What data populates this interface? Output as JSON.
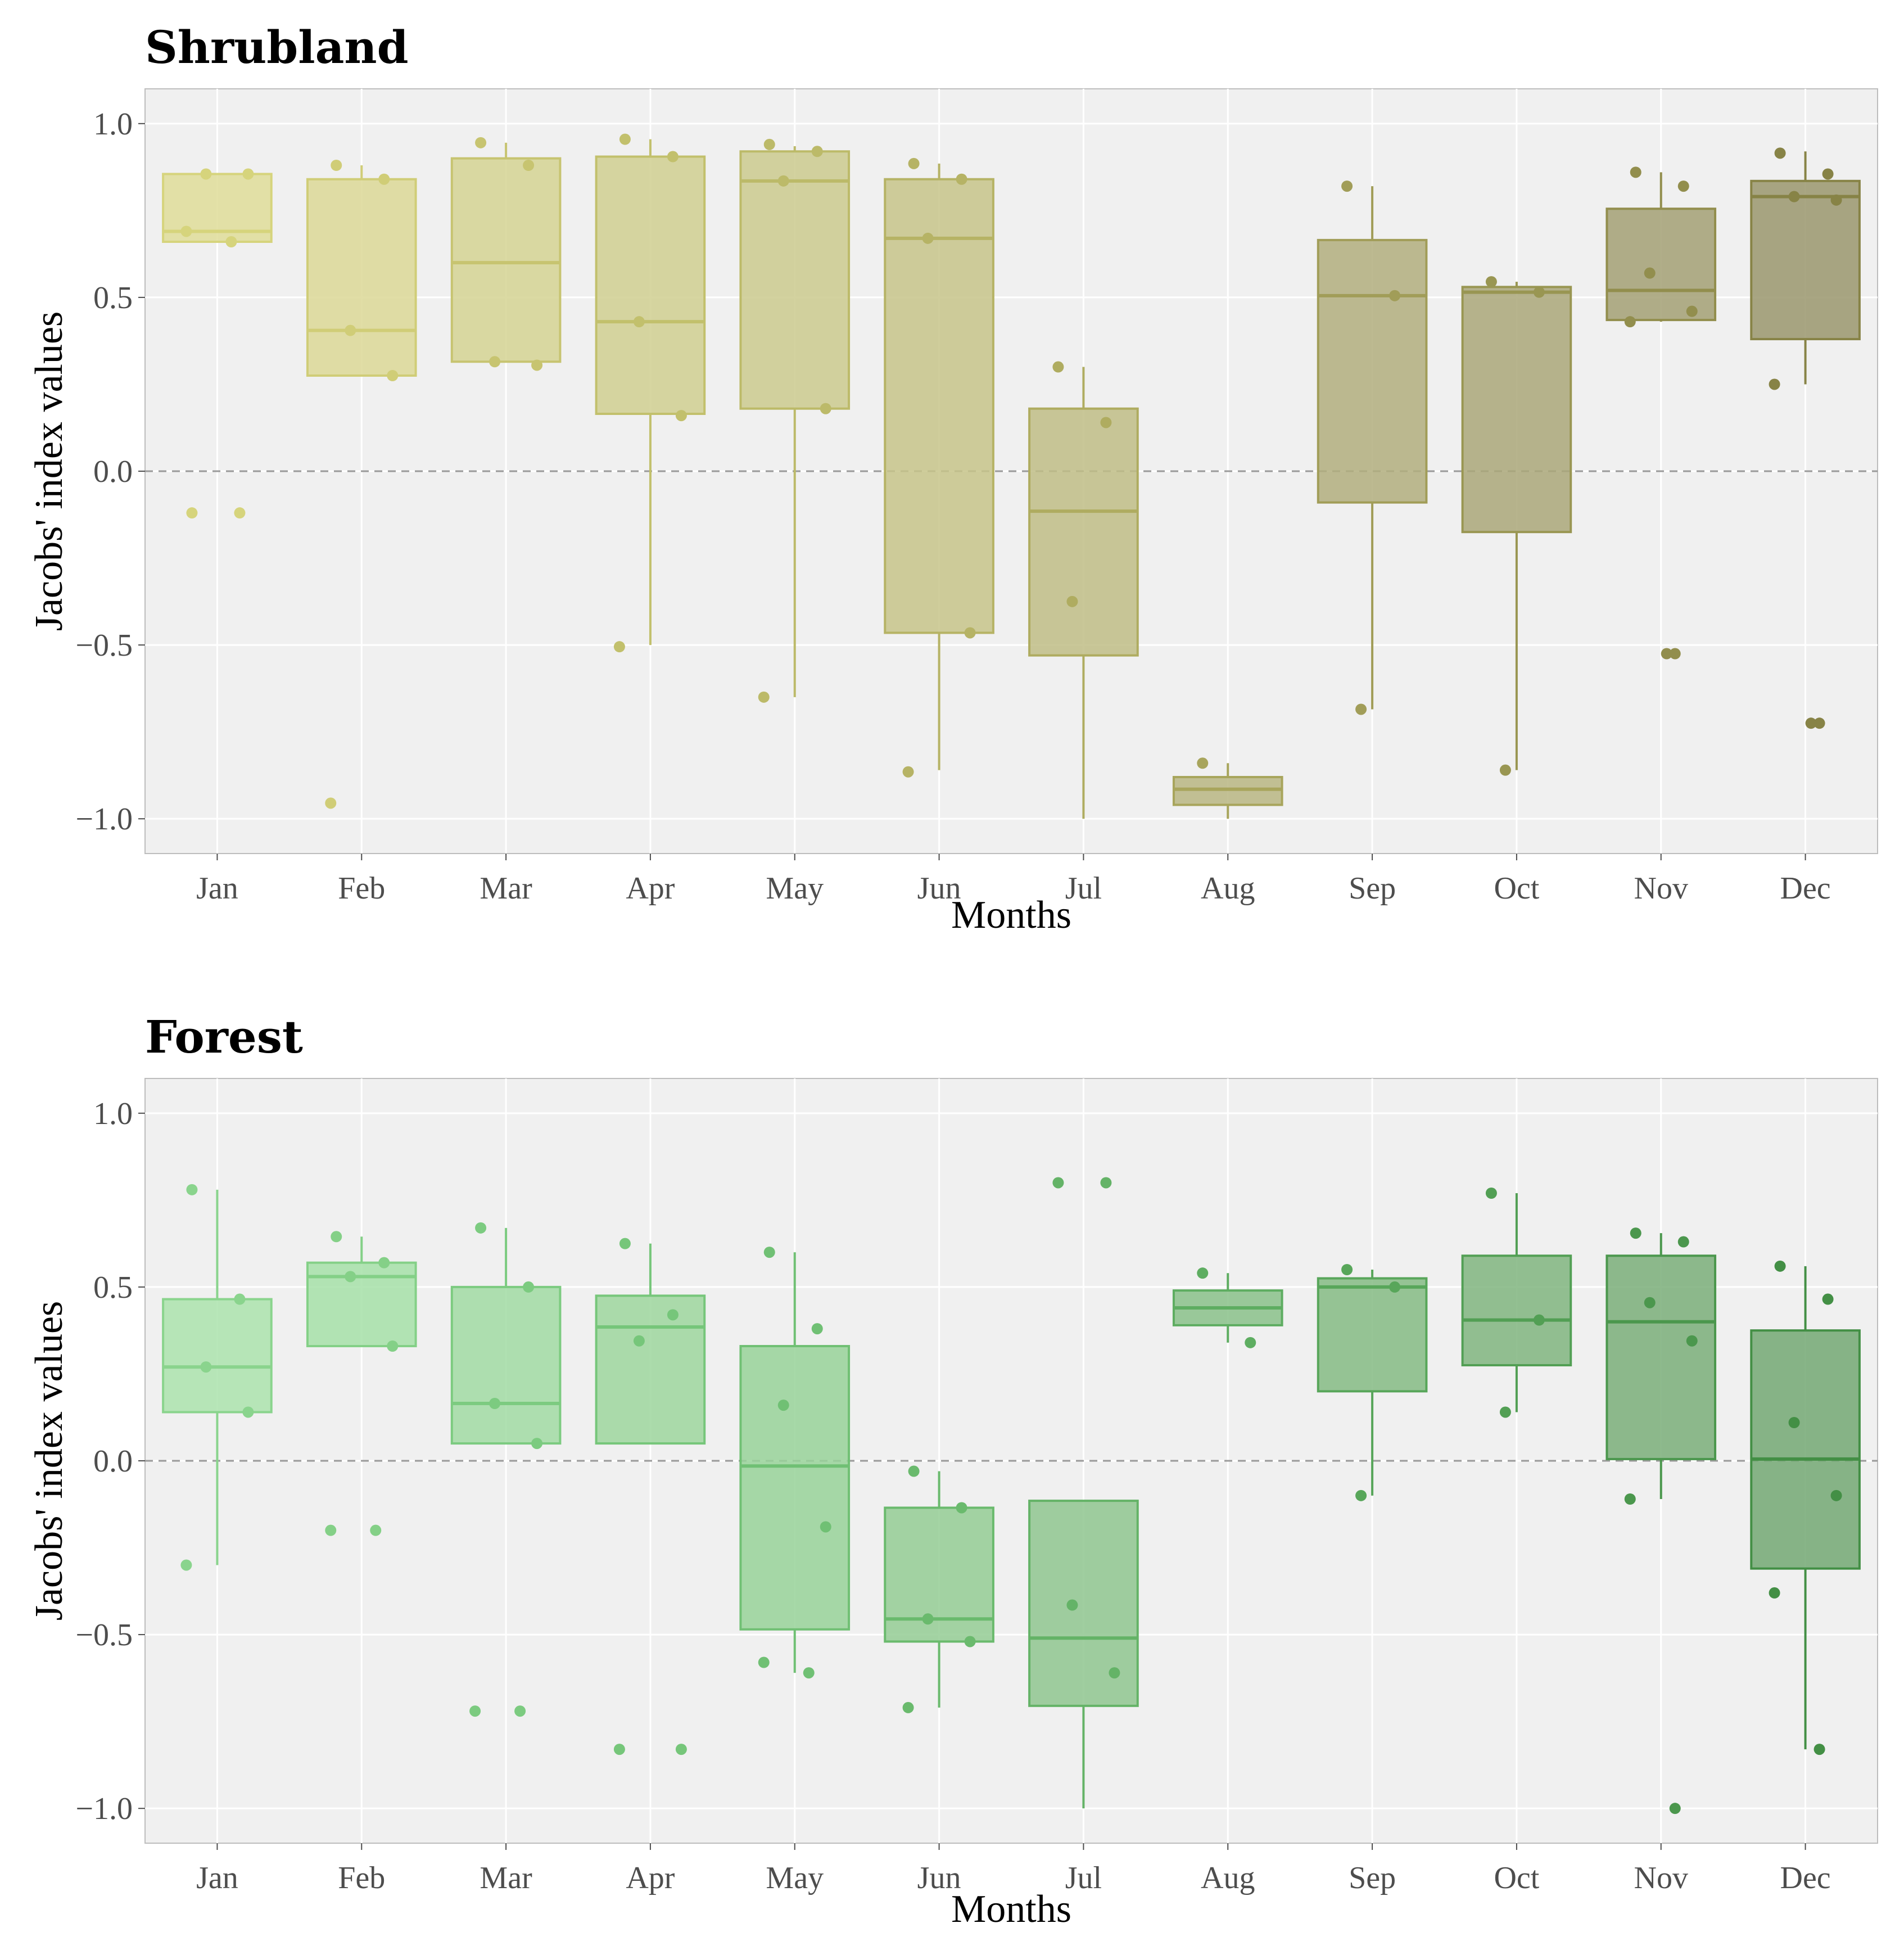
{
  "chart_data": [
    {
      "type": "boxplot",
      "title": "Shrubland",
      "xlabel": "Months",
      "ylabel": "Jacobs' index values",
      "ylim": [
        -1.1,
        1.1
      ],
      "yticks": [
        1.0,
        0.5,
        0.0,
        -0.5,
        -1.0
      ],
      "ytick_labels": [
        "1.0",
        "0.5",
        "0.0",
        "−0.5",
        "−1.0"
      ],
      "reference_line": 0,
      "categories": [
        "Jan",
        "Feb",
        "Mar",
        "Apr",
        "May",
        "Jun",
        "Jul",
        "Aug",
        "Sep",
        "Oct",
        "Nov",
        "Dec"
      ],
      "colors": [
        "#dfdd99",
        "#dcd896",
        "#d5d393",
        "#d0cf91",
        "#cbca8e",
        "#c7c48a",
        "#c0bd86",
        "#b9b682",
        "#b2ae7e",
        "#aaa779",
        "#a3a074",
        "#9a966d"
      ],
      "edge_colors": [
        "#d6d47c",
        "#d0cd77",
        "#c7c470",
        "#c2c06c",
        "#bcba69",
        "#b6b365",
        "#afac60",
        "#a8a55c",
        "#a19d58",
        "#999652",
        "#928e4d",
        "#878346"
      ],
      "boxes": [
        {
          "q1": 0.66,
          "median": 0.69,
          "q3": 0.855,
          "whisker_low": 0.66,
          "whisker_high": 0.855
        },
        {
          "q1": 0.275,
          "median": 0.405,
          "q3": 0.84,
          "whisker_low": 0.275,
          "whisker_high": 0.88
        },
        {
          "q1": 0.315,
          "median": 0.6,
          "q3": 0.9,
          "whisker_low": 0.315,
          "whisker_high": 0.945
        },
        {
          "q1": 0.165,
          "median": 0.43,
          "q3": 0.905,
          "whisker_low": -0.5,
          "whisker_high": 0.955
        },
        {
          "q1": 0.18,
          "median": 0.835,
          "q3": 0.92,
          "whisker_low": -0.65,
          "whisker_high": 0.935
        },
        {
          "q1": -0.465,
          "median": 0.67,
          "q3": 0.84,
          "whisker_low": -0.86,
          "whisker_high": 0.885
        },
        {
          "q1": -0.53,
          "median": -0.115,
          "q3": 0.18,
          "whisker_low": -1.0,
          "whisker_high": 0.3
        },
        {
          "q1": -0.96,
          "median": -0.915,
          "q3": -0.88,
          "whisker_low": -1.0,
          "whisker_high": -0.84
        },
        {
          "q1": -0.09,
          "median": 0.505,
          "q3": 0.665,
          "whisker_low": -0.685,
          "whisker_high": 0.82
        },
        {
          "q1": -0.175,
          "median": 0.515,
          "q3": 0.53,
          "whisker_low": -0.86,
          "whisker_high": 0.545
        },
        {
          "q1": 0.435,
          "median": 0.52,
          "q3": 0.755,
          "whisker_low": 0.43,
          "whisker_high": 0.86
        },
        {
          "q1": 0.38,
          "median": 0.79,
          "q3": 0.835,
          "whisker_low": 0.25,
          "whisker_high": 0.92
        }
      ],
      "points": [
        [
          -0.12,
          -0.12,
          0.855,
          0.855,
          0.69,
          0.66
        ],
        [
          0.88,
          0.84,
          0.405,
          0.275,
          -0.955
        ],
        [
          0.945,
          0.88,
          0.315,
          0.305
        ],
        [
          0.955,
          0.905,
          0.43,
          0.16,
          -0.505
        ],
        [
          0.94,
          0.92,
          0.835,
          0.18,
          -0.65
        ],
        [
          0.885,
          0.84,
          0.67,
          -0.465,
          -0.865
        ],
        [
          0.3,
          0.14,
          -0.375
        ],
        [
          -0.84
        ],
        [
          0.82,
          0.505,
          -0.685
        ],
        [
          0.545,
          0.515,
          -0.86
        ],
        [
          0.86,
          0.82,
          0.57,
          0.46,
          0.43,
          -0.525,
          -0.525
        ],
        [
          0.915,
          0.855,
          0.79,
          0.78,
          0.25,
          -0.725,
          -0.725
        ]
      ]
    },
    {
      "type": "boxplot",
      "title": "Forest",
      "xlabel": "Months",
      "ylabel": "Jacobs' index values",
      "ylim": [
        -1.1,
        1.1
      ],
      "yticks": [
        1.0,
        0.5,
        0.0,
        -0.5,
        -1.0
      ],
      "ytick_labels": [
        "1.0",
        "0.5",
        "0.0",
        "−0.5",
        "−1.0"
      ],
      "reference_line": 0,
      "categories": [
        "Jan",
        "Feb",
        "Mar",
        "Apr",
        "May",
        "Jun",
        "Jul",
        "Aug",
        "Sep",
        "Oct",
        "Nov",
        "Dec"
      ],
      "colors": [
        "#abe3ad",
        "#a6e0a8",
        "#a1dba3",
        "#9dd69e",
        "#98d299",
        "#94cc94",
        "#8fc68f",
        "#8ac18a",
        "#85bb84",
        "#80b57f",
        "#7aae79",
        "#73a873"
      ],
      "edge_colors": [
        "#8ad48d",
        "#84d087",
        "#7ccb80",
        "#76c67a",
        "#70c074",
        "#6aba6d",
        "#64b367",
        "#5ead61",
        "#58a65a",
        "#529f54",
        "#4b974d",
        "#438f45"
      ],
      "boxes": [
        {
          "q1": 0.14,
          "median": 0.27,
          "q3": 0.465,
          "whisker_low": -0.3,
          "whisker_high": 0.78
        },
        {
          "q1": 0.33,
          "median": 0.53,
          "q3": 0.57,
          "whisker_low": 0.33,
          "whisker_high": 0.645
        },
        {
          "q1": 0.05,
          "median": 0.165,
          "q3": 0.5,
          "whisker_low": 0.05,
          "whisker_high": 0.67
        },
        {
          "q1": 0.05,
          "median": 0.385,
          "q3": 0.475,
          "whisker_low": 0.05,
          "whisker_high": 0.625
        },
        {
          "q1": -0.485,
          "median": -0.015,
          "q3": 0.33,
          "whisker_low": -0.61,
          "whisker_high": 0.6
        },
        {
          "q1": -0.52,
          "median": -0.455,
          "q3": -0.135,
          "whisker_low": -0.71,
          "whisker_high": -0.03
        },
        {
          "q1": -0.705,
          "median": -0.51,
          "q3": -0.115,
          "whisker_low": -1.0,
          "whisker_high": -0.115
        },
        {
          "q1": 0.39,
          "median": 0.44,
          "q3": 0.49,
          "whisker_low": 0.34,
          "whisker_high": 0.54
        },
        {
          "q1": 0.2,
          "median": 0.5,
          "q3": 0.525,
          "whisker_low": -0.1,
          "whisker_high": 0.55
        },
        {
          "q1": 0.275,
          "median": 0.405,
          "q3": 0.59,
          "whisker_low": 0.14,
          "whisker_high": 0.77
        },
        {
          "q1": 0.005,
          "median": 0.4,
          "q3": 0.59,
          "whisker_low": -0.11,
          "whisker_high": 0.655
        },
        {
          "q1": -0.31,
          "median": 0.005,
          "q3": 0.375,
          "whisker_low": -0.83,
          "whisker_high": 0.56
        }
      ],
      "points": [
        [
          0.78,
          0.465,
          0.27,
          0.14,
          -0.3
        ],
        [
          0.645,
          0.57,
          0.53,
          0.33,
          -0.2,
          -0.2
        ],
        [
          0.67,
          0.5,
          0.165,
          0.05,
          -0.72,
          -0.72
        ],
        [
          0.625,
          0.42,
          0.345,
          -0.83,
          -0.83
        ],
        [
          0.6,
          0.38,
          0.16,
          -0.19,
          -0.58,
          -0.61
        ],
        [
          -0.03,
          -0.135,
          -0.455,
          -0.52,
          -0.71
        ],
        [
          0.8,
          0.8,
          -0.415,
          -0.61
        ],
        [
          0.54,
          0.34
        ],
        [
          0.55,
          0.5,
          -0.1
        ],
        [
          0.77,
          0.405,
          0.14
        ],
        [
          0.655,
          0.63,
          0.455,
          0.345,
          -0.11,
          -1.0
        ],
        [
          0.56,
          0.465,
          0.11,
          -0.1,
          -0.38,
          -0.83
        ]
      ]
    }
  ]
}
